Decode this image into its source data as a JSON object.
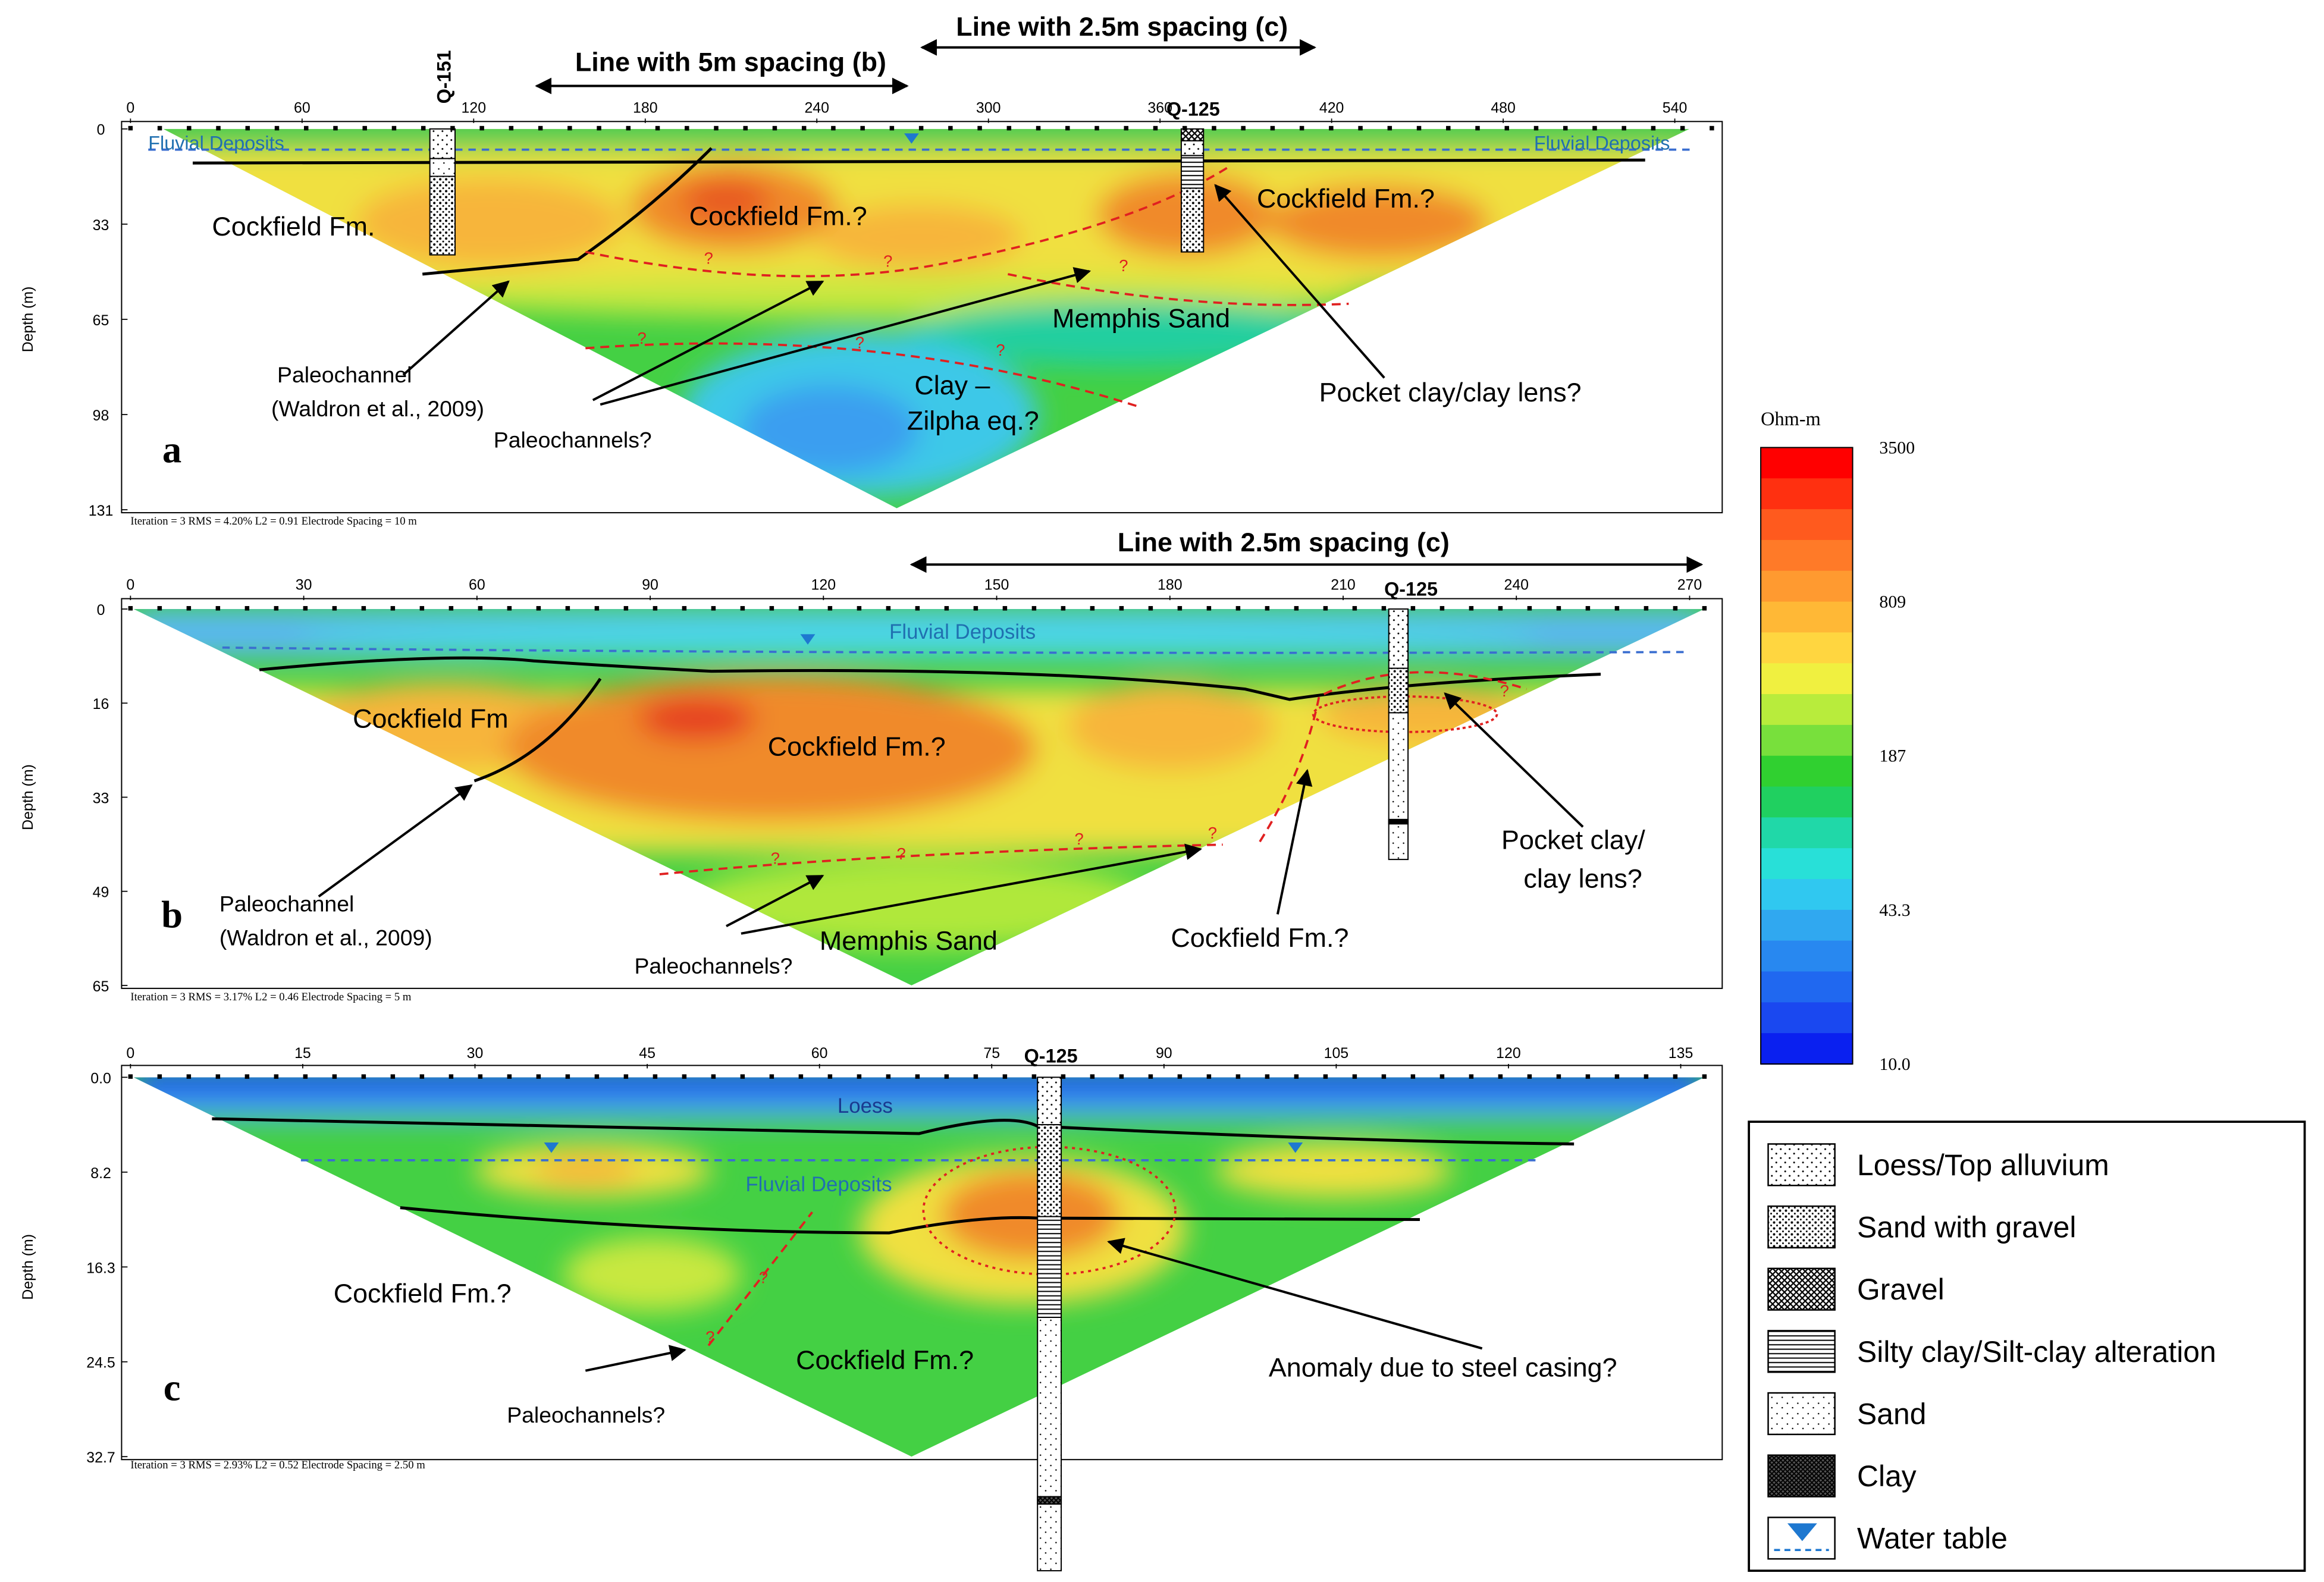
{
  "spacing_lines": [
    "Line with 2.5m spacing (c)",
    "Line with 5m spacing (b)",
    "Line with 2.5m spacing (c)"
  ],
  "question_mark": "?",
  "panels": [
    {
      "letter": "a",
      "x_ticks": [
        "0",
        "60",
        "120",
        "180",
        "240",
        "300",
        "360",
        "420",
        "480",
        "540"
      ],
      "y_ticks": [
        "0",
        "33",
        "65",
        "98",
        "131"
      ],
      "y_label": "Depth (m)",
      "footer": "Iteration = 3   RMS = 4.20%   L2 = 0.91   Electrode Spacing = 10 m",
      "wells": [
        "Q-151",
        "Q-125"
      ],
      "annotations": [
        "Fluvial Deposits",
        "Fluvial Deposits",
        "Cockfield Fm.",
        "Cockfield Fm.?",
        "Cockfield Fm.?",
        "Memphis Sand",
        "Paleochannel",
        "(Waldron et al., 2009)",
        "Paleochannels?",
        "Clay –",
        "Zilpha eq.?",
        "Pocket clay/clay lens?"
      ]
    },
    {
      "letter": "b",
      "x_ticks": [
        "0",
        "30",
        "60",
        "90",
        "120",
        "150",
        "180",
        "210",
        "240",
        "270"
      ],
      "y_ticks": [
        "0",
        "16",
        "33",
        "49",
        "65"
      ],
      "y_label": "Depth (m)",
      "footer": "Iteration = 3   RMS = 3.17%   L2 = 0.46   Electrode Spacing = 5 m",
      "wells": [
        "Q-125"
      ],
      "annotations": [
        "Fluvial Deposits",
        "Cockfield Fm",
        "Cockfield Fm.?",
        "Pocket clay/",
        "clay lens?",
        "Paleochannel",
        "(Waldron et al., 2009)",
        "Memphis Sand",
        "Cockfield Fm.?",
        "Paleochannels?"
      ]
    },
    {
      "letter": "c",
      "x_ticks": [
        "0",
        "15",
        "30",
        "45",
        "60",
        "75",
        "90",
        "105",
        "120",
        "135"
      ],
      "y_ticks": [
        "0.0",
        "8.2",
        "16.3",
        "24.5",
        "32.7"
      ],
      "y_label": "Depth (m)",
      "footer": "Iteration = 3   RMS = 2.93%   L2 = 0.52   Electrode Spacing = 2.50 m",
      "wells": [
        "Q-125"
      ],
      "annotations": [
        "Loess",
        "Fluvial Deposits",
        "Cockfield Fm.?",
        "Cockfield Fm.?",
        "Anomaly due to steel casing?",
        "Paleochannels?"
      ]
    }
  ],
  "colorbar": {
    "unit": "Ohm-m",
    "labels": [
      "3500",
      "809",
      "187",
      "43.3",
      "10.0"
    ]
  },
  "legend": [
    "Loess/Top alluvium",
    "Sand with gravel",
    "Gravel",
    "Silty clay/Silt-clay alteration",
    "Sand",
    "Clay",
    "Water table"
  ]
}
